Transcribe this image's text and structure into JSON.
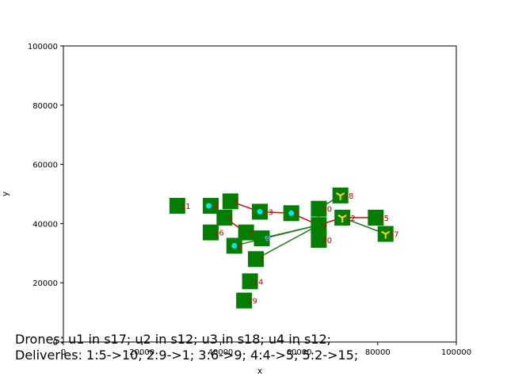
{
  "chart_data": {
    "type": "scatter",
    "xlabel": "x",
    "ylabel": "y",
    "xlim": [
      0,
      100000
    ],
    "ylim": [
      0,
      100000
    ],
    "xticks": [
      "0",
      "20000",
      "40000",
      "60000",
      "80000",
      "100000"
    ],
    "yticks": [
      "0",
      "20000",
      "40000",
      "60000",
      "80000",
      "100000"
    ],
    "grid": false,
    "nodes": [
      {
        "label": "1",
        "x": 46500,
        "y": 37000
      },
      {
        "label": "2",
        "x": 41000,
        "y": 42000
      },
      {
        "label": "3",
        "x": 42500,
        "y": 47500
      },
      {
        "label": "4",
        "x": 50500,
        "y": 35000
      },
      {
        "label": "5",
        "x": 58000,
        "y": 43500
      },
      {
        "label": "6",
        "x": 43500,
        "y": 32500
      },
      {
        "label": "7",
        "x": 49000,
        "y": 28000
      },
      {
        "label": "8",
        "x": 37500,
        "y": 46000
      },
      {
        "label": "9",
        "x": 65000,
        "y": 39500
      },
      {
        "label": "10",
        "x": 65000,
        "y": 45000
      },
      {
        "label": "11",
        "x": 29000,
        "y": 46000
      },
      {
        "label": "12",
        "x": 71000,
        "y": 42000
      },
      {
        "label": "13",
        "x": 50000,
        "y": 44000
      },
      {
        "label": "14",
        "x": 47500,
        "y": 20500
      },
      {
        "label": "15",
        "x": 79500,
        "y": 42000
      },
      {
        "label": "16",
        "x": 37500,
        "y": 37000
      },
      {
        "label": "17",
        "x": 82000,
        "y": 36500
      },
      {
        "label": "18",
        "x": 70500,
        "y": 49500
      },
      {
        "label": "19",
        "x": 46000,
        "y": 14000
      },
      {
        "label": "20",
        "x": 65000,
        "y": 34500
      }
    ],
    "red_edges": [
      [
        8,
        2
      ],
      [
        2,
        1
      ],
      [
        3,
        13
      ],
      [
        13,
        5
      ],
      [
        5,
        9
      ],
      [
        9,
        12
      ],
      [
        12,
        15
      ]
    ],
    "green_edges": [
      [
        6,
        9
      ],
      [
        4,
        9
      ],
      [
        7,
        9
      ],
      [
        9,
        10
      ],
      [
        10,
        18
      ],
      [
        12,
        17
      ]
    ],
    "drones": [
      {
        "name": "u1",
        "node": "17",
        "x": 82000,
        "y": 36500,
        "color": "#ffd700"
      },
      {
        "name": "u2",
        "node": "12",
        "x": 71000,
        "y": 42000,
        "color": "#ffd700"
      },
      {
        "name": "u3",
        "node": "18",
        "x": 70500,
        "y": 49500,
        "color": "#ffd700"
      },
      {
        "name": "u4",
        "node": "12",
        "x": 71000,
        "y": 42000,
        "color": "#ffd700"
      }
    ],
    "markers": [
      {
        "x": 37000,
        "y": 46000
      },
      {
        "x": 50000,
        "y": 44000
      },
      {
        "x": 58000,
        "y": 43500
      },
      {
        "x": 43500,
        "y": 32500
      },
      {
        "x": 52000,
        "y": 35000
      }
    ],
    "colors": {
      "node": "#008000",
      "label": "#d40000",
      "red_edge": "#e00000",
      "green_edge": "#1a7a1a",
      "marker": "#00e5ff"
    }
  },
  "status": {
    "drones_text": "Drones: u1 in s17; u2 in s12; u3 in s18; u4 in s12;",
    "deliveries_text": "Deliveries: 1:5->10; 2:9->1; 3:6->9; 4:4->5; 5:2->15;"
  }
}
